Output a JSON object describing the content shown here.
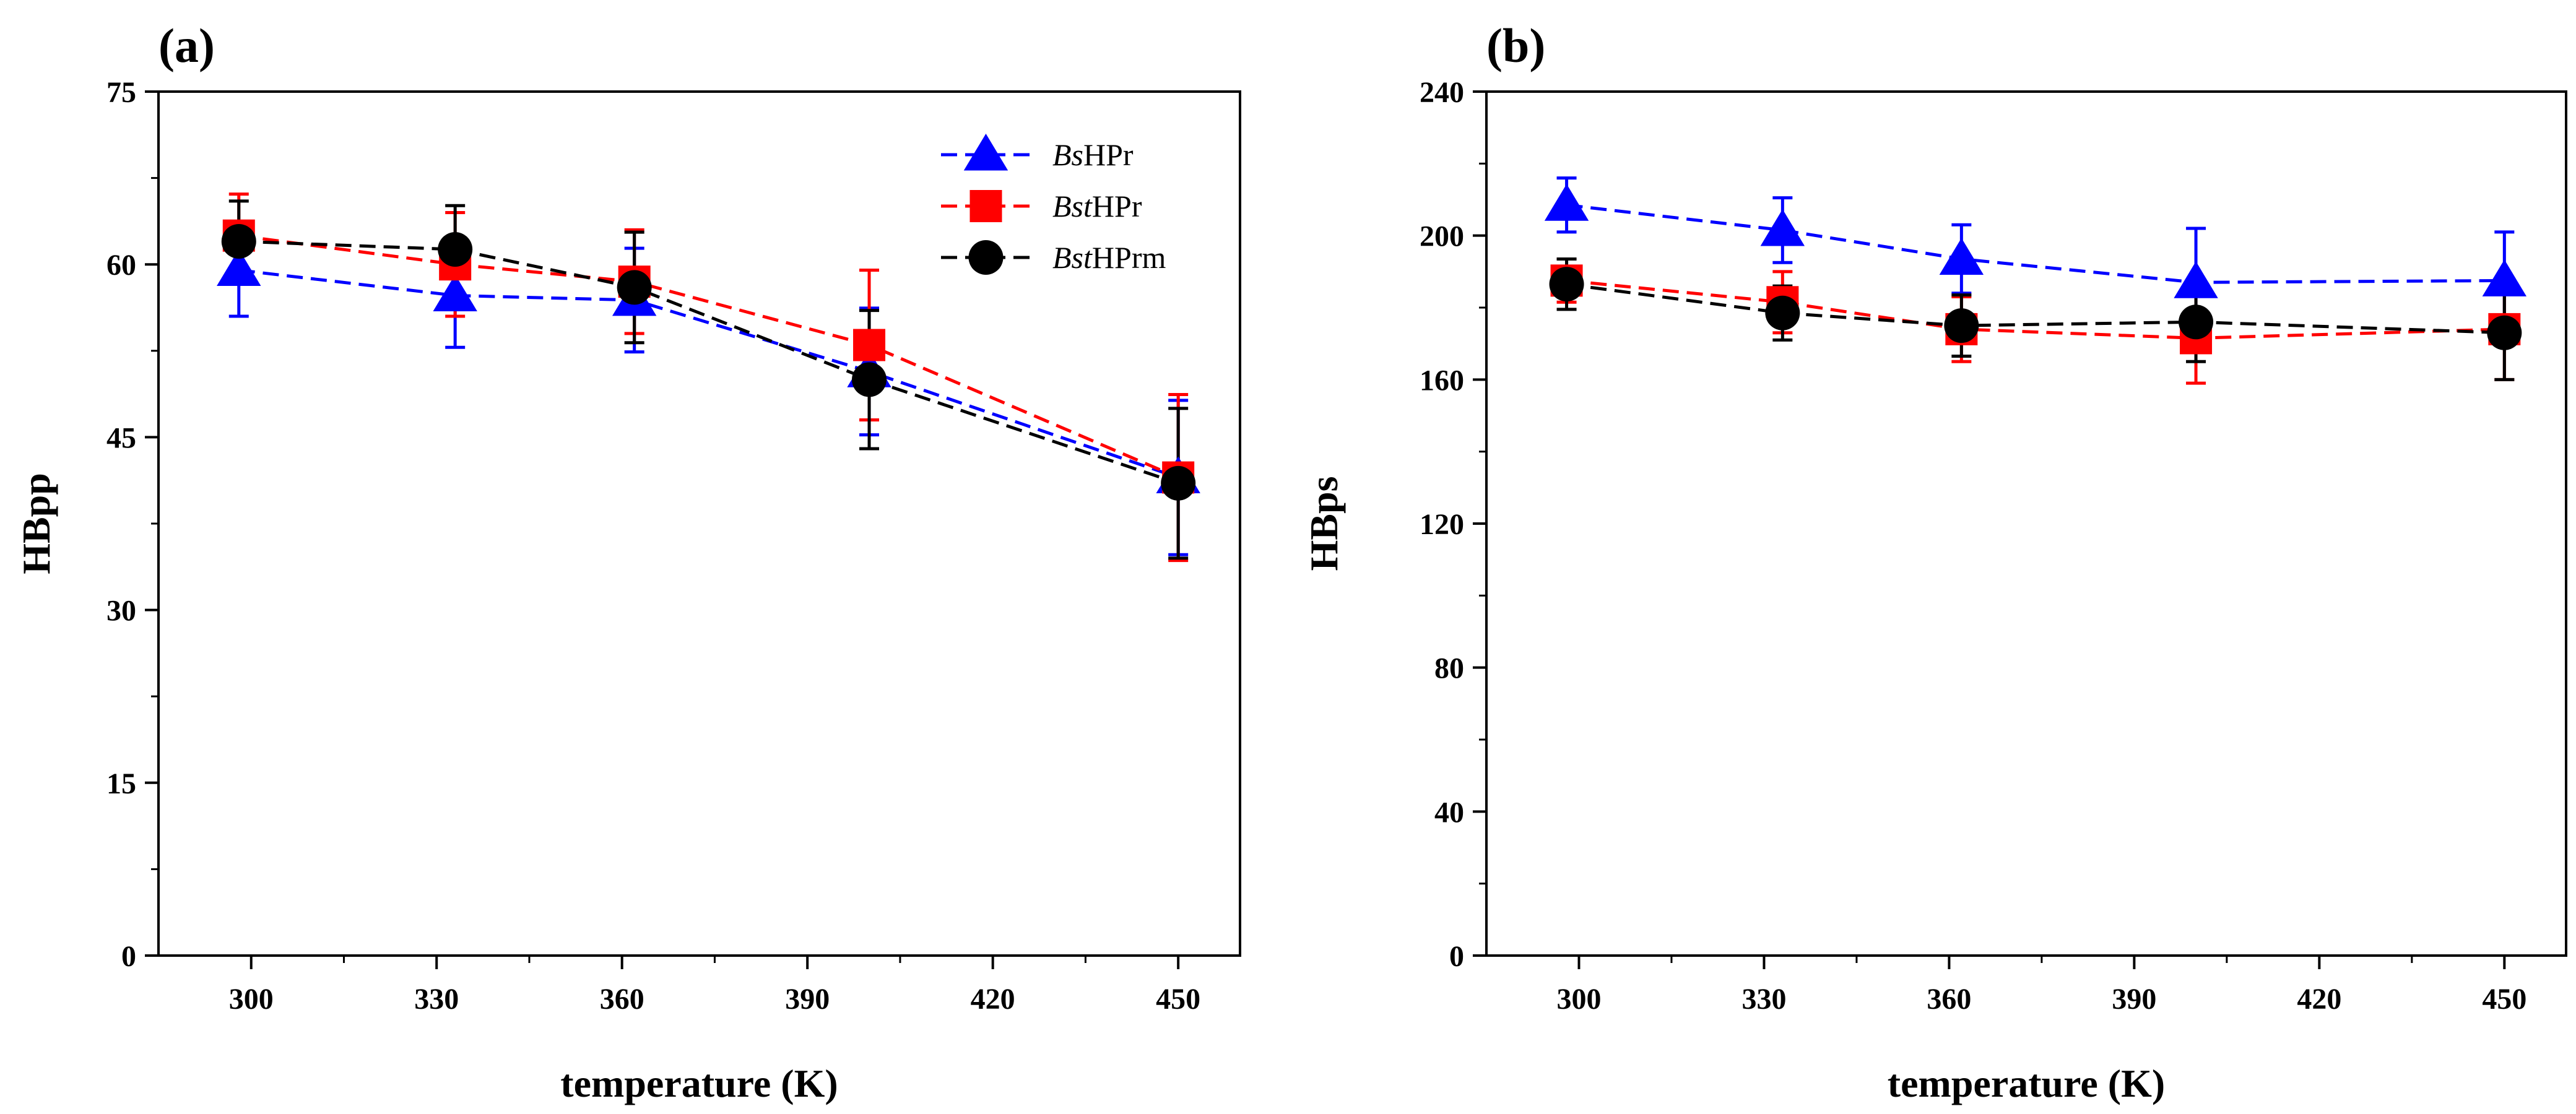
{
  "chart_data": [
    {
      "type": "line",
      "panel_label": "(a)",
      "xlabel": "temperature (K)",
      "ylabel": "HBpp",
      "xlim": [
        285,
        460
      ],
      "ylim": [
        0,
        75
      ],
      "xticks": [
        300,
        330,
        360,
        390,
        420,
        450
      ],
      "yticks": [
        0,
        15,
        30,
        45,
        60,
        75
      ],
      "grid": false,
      "legend_position": "top-right",
      "series": [
        {
          "name": "BsHPr",
          "name_italic": "Bs",
          "name_rest": "HPr",
          "color": "#0000ff",
          "marker": "triangle",
          "x": [
            298,
            333,
            362,
            400,
            450
          ],
          "y": [
            59.5,
            57.3,
            56.9,
            50.7,
            41.5
          ],
          "err": [
            4.0,
            4.5,
            4.5,
            5.5,
            6.7
          ]
        },
        {
          "name": "BstHPr",
          "name_italic": "Bst",
          "name_rest": "HPr",
          "color": "#ff0000",
          "marker": "square",
          "x": [
            298,
            333,
            362,
            400,
            450
          ],
          "y": [
            62.5,
            60.0,
            58.5,
            53.0,
            41.5
          ],
          "err": [
            3.6,
            4.5,
            4.5,
            6.5,
            7.2
          ]
        },
        {
          "name": "BstHPrm",
          "name_italic": "Bst",
          "name_rest": "HPrm",
          "color": "#000000",
          "marker": "circle",
          "x": [
            298,
            333,
            362,
            400,
            450
          ],
          "y": [
            62.0,
            61.3,
            58.0,
            50.0,
            41.0
          ],
          "err": [
            3.5,
            3.8,
            4.8,
            6.0,
            6.5
          ]
        }
      ]
    },
    {
      "type": "line",
      "panel_label": "(b)",
      "xlabel": "temperature (K)",
      "ylabel": "HBps",
      "xlim": [
        285,
        460
      ],
      "ylim": [
        0,
        240
      ],
      "xticks": [
        300,
        330,
        360,
        390,
        420,
        450
      ],
      "yticks": [
        0,
        40,
        80,
        120,
        160,
        200,
        240
      ],
      "grid": false,
      "series": [
        {
          "name": "BsHPr",
          "color": "#0000ff",
          "marker": "triangle",
          "x": [
            298,
            333,
            362,
            400,
            450
          ],
          "y": [
            208.5,
            201.5,
            193.5,
            187.0,
            187.5
          ],
          "err": [
            7.5,
            9.0,
            9.5,
            15.0,
            13.5
          ]
        },
        {
          "name": "BstHPr",
          "color": "#ff0000",
          "marker": "square",
          "x": [
            298,
            333,
            362,
            400,
            450
          ],
          "y": [
            187.5,
            181.5,
            174.0,
            171.5,
            174.0
          ],
          "err": [
            6.0,
            8.5,
            9.0,
            12.5,
            14.0
          ]
        },
        {
          "name": "BstHPrm",
          "color": "#000000",
          "marker": "circle",
          "x": [
            298,
            333,
            362,
            400,
            450
          ],
          "y": [
            186.5,
            178.5,
            175.0,
            176.0,
            173.0
          ],
          "err": [
            7.0,
            7.5,
            8.5,
            11.0,
            13.0
          ]
        }
      ]
    }
  ]
}
